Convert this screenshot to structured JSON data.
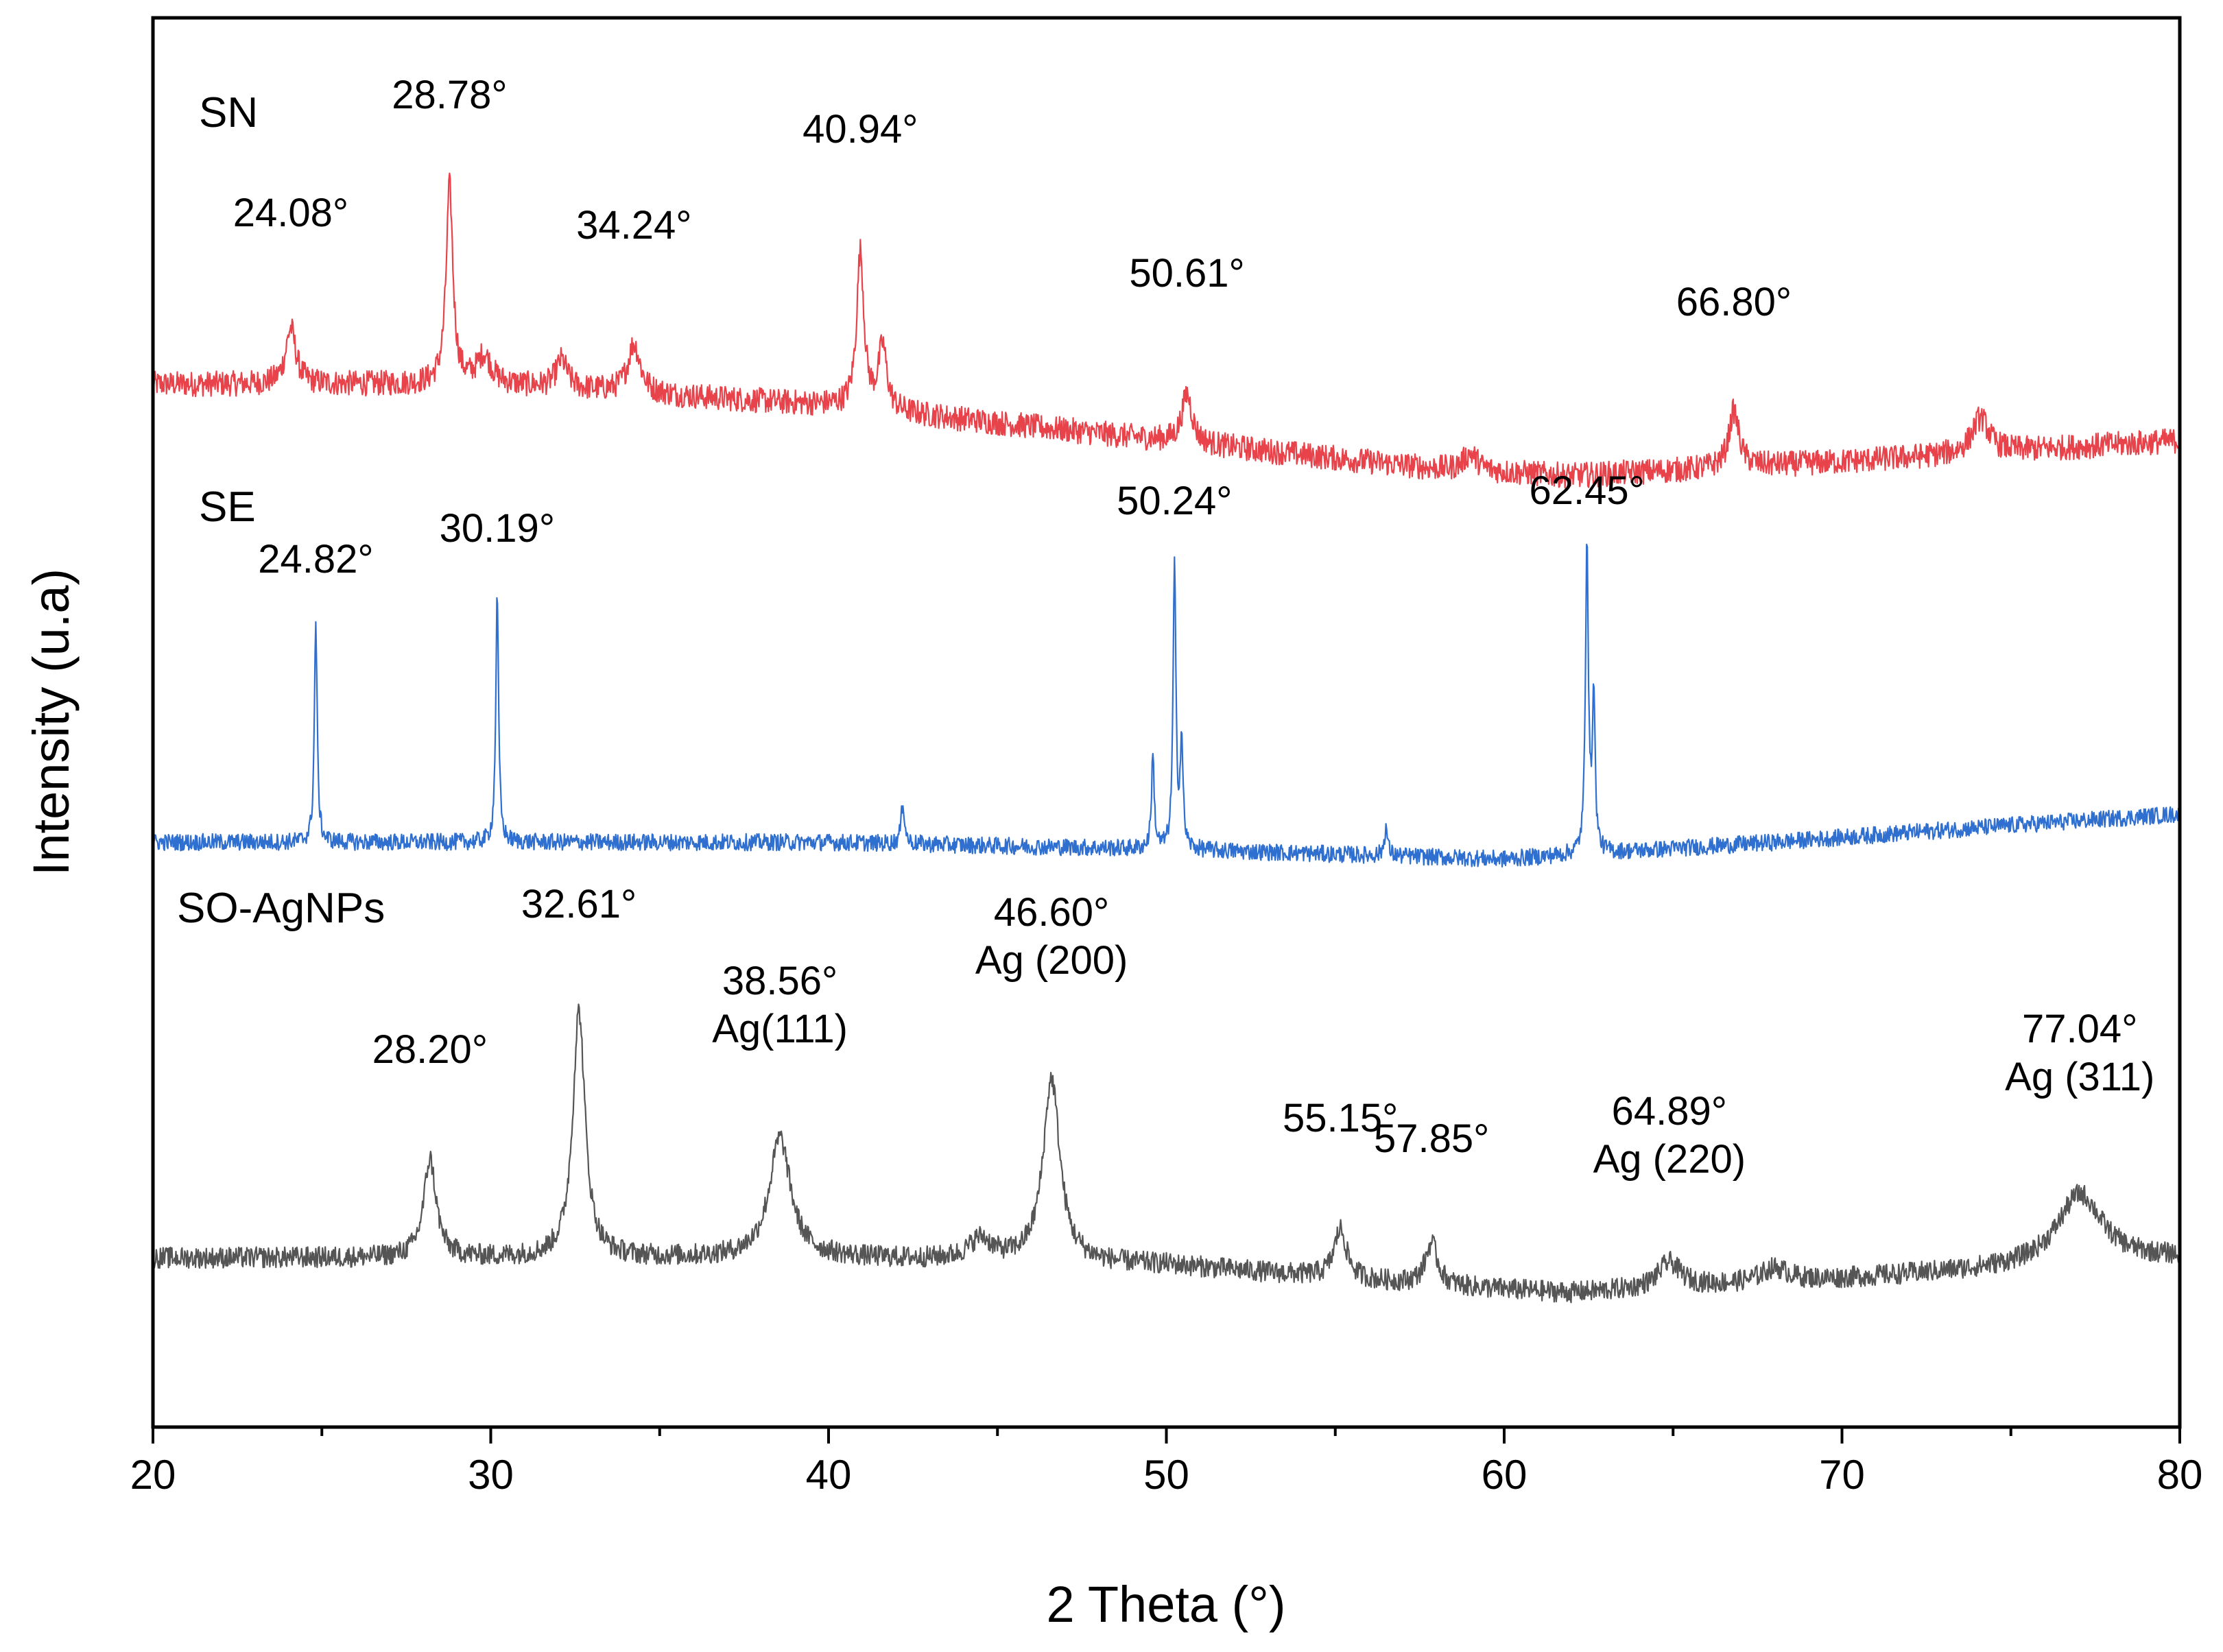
{
  "chart_data": {
    "type": "line",
    "title": "",
    "xlabel": "2 Theta (°)",
    "ylabel": "Intensity (u.a)",
    "xlim": [
      20,
      80
    ],
    "xticks": [
      20,
      30,
      40,
      50,
      60,
      70,
      80
    ],
    "yticks_shown": false,
    "grid": false,
    "legend": "none (series labelled inline)",
    "series": [
      {
        "name": "SN",
        "color": "#e8434b",
        "offset": 0.74,
        "baseline": [
          [
            20,
            0.0
          ],
          [
            30,
            0.0
          ],
          [
            40,
            -0.015
          ],
          [
            50,
            -0.04
          ],
          [
            58,
            -0.06
          ],
          [
            62,
            -0.065
          ],
          [
            70,
            -0.055
          ],
          [
            80,
            -0.04
          ]
        ],
        "noise": 0.018,
        "peaks": [
          {
            "x": 24.08,
            "h": 0.04,
            "w": 0.18
          },
          {
            "x": 28.78,
            "h": 0.14,
            "w": 0.12
          },
          {
            "x": 29.8,
            "h": 0.02,
            "w": 0.25
          },
          {
            "x": 32.1,
            "h": 0.02,
            "w": 0.2
          },
          {
            "x": 34.24,
            "h": 0.035,
            "w": 0.22
          },
          {
            "x": 40.94,
            "h": 0.11,
            "w": 0.13
          },
          {
            "x": 41.6,
            "h": 0.045,
            "w": 0.15
          },
          {
            "x": 50.61,
            "h": 0.035,
            "w": 0.18
          },
          {
            "x": 59.0,
            "h": 0.012,
            "w": 0.25
          },
          {
            "x": 66.8,
            "h": 0.04,
            "w": 0.18
          },
          {
            "x": 74.1,
            "h": 0.025,
            "w": 0.3
          }
        ],
        "annotations": [
          {
            "text": "24.08°",
            "x": 24.08
          },
          {
            "text": "28.78°",
            "x": 28.78
          },
          {
            "text": "34.24°",
            "x": 34.24
          },
          {
            "text": "40.94°",
            "x": 40.94
          },
          {
            "text": "50.61°",
            "x": 50.61
          },
          {
            "text": "66.80°",
            "x": 66.8
          }
        ]
      },
      {
        "name": "SE",
        "color": "#2f6fd0",
        "offset": 0.415,
        "baseline": [
          [
            20,
            0.0
          ],
          [
            40,
            0.0
          ],
          [
            50,
            -0.005
          ],
          [
            60,
            -0.012
          ],
          [
            68,
            0.0
          ],
          [
            75,
            0.012
          ],
          [
            80,
            0.02
          ]
        ],
        "noise": 0.012,
        "peaks": [
          {
            "x": 24.82,
            "h": 0.155,
            "w": 0.05
          },
          {
            "x": 30.19,
            "h": 0.175,
            "w": 0.05
          },
          {
            "x": 42.2,
            "h": 0.03,
            "w": 0.06
          },
          {
            "x": 49.6,
            "h": 0.065,
            "w": 0.05
          },
          {
            "x": 50.24,
            "h": 0.2,
            "w": 0.05
          },
          {
            "x": 50.45,
            "h": 0.075,
            "w": 0.05
          },
          {
            "x": 56.5,
            "h": 0.02,
            "w": 0.06
          },
          {
            "x": 62.45,
            "h": 0.225,
            "w": 0.05
          },
          {
            "x": 62.65,
            "h": 0.11,
            "w": 0.05
          }
        ],
        "annotations": [
          {
            "text": "24.82°",
            "x": 24.82
          },
          {
            "text": "30.19°",
            "x": 30.19
          },
          {
            "text": "50.24°",
            "x": 50.24
          },
          {
            "text": "62.45°",
            "x": 62.45
          }
        ]
      },
      {
        "name": "SO-AgNPs",
        "color": "#555555",
        "offset": 0.12,
        "baseline": [
          [
            20,
            0.0
          ],
          [
            30,
            0.0
          ],
          [
            40,
            0.0
          ],
          [
            50,
            -0.005
          ],
          [
            58,
            -0.02
          ],
          [
            62,
            -0.025
          ],
          [
            70,
            -0.015
          ],
          [
            80,
            0.0
          ]
        ],
        "noise": 0.015,
        "peaks": [
          {
            "x": 28.2,
            "h": 0.07,
            "w": 0.22
          },
          {
            "x": 32.61,
            "h": 0.175,
            "w": 0.22
          },
          {
            "x": 38.56,
            "h": 0.085,
            "w": 0.38
          },
          {
            "x": 44.5,
            "h": 0.015,
            "w": 0.4
          },
          {
            "x": 46.6,
            "h": 0.13,
            "w": 0.3
          },
          {
            "x": 55.15,
            "h": 0.035,
            "w": 0.22
          },
          {
            "x": 57.85,
            "h": 0.03,
            "w": 0.22
          },
          {
            "x": 64.89,
            "h": 0.018,
            "w": 0.4
          },
          {
            "x": 68.0,
            "h": 0.01,
            "w": 0.5
          },
          {
            "x": 77.04,
            "h": 0.05,
            "w": 0.8
          }
        ],
        "annotations": [
          {
            "text": "28.20°",
            "x": 28.2
          },
          {
            "text": "32.61°",
            "x": 32.61
          },
          {
            "text": "38.56°",
            "x": 38.56,
            "line2": "Ag(111)"
          },
          {
            "text": "46.60°",
            "x": 46.6,
            "line2": "Ag (200)"
          },
          {
            "text": "55.15°",
            "x": 55.15
          },
          {
            "text": "57.85°",
            "x": 57.85
          },
          {
            "text": "64.89°",
            "x": 64.89,
            "line2": "Ag (220)"
          },
          {
            "text": "77.04°",
            "x": 77.04,
            "line2": "Ag (311)"
          }
        ]
      }
    ]
  }
}
